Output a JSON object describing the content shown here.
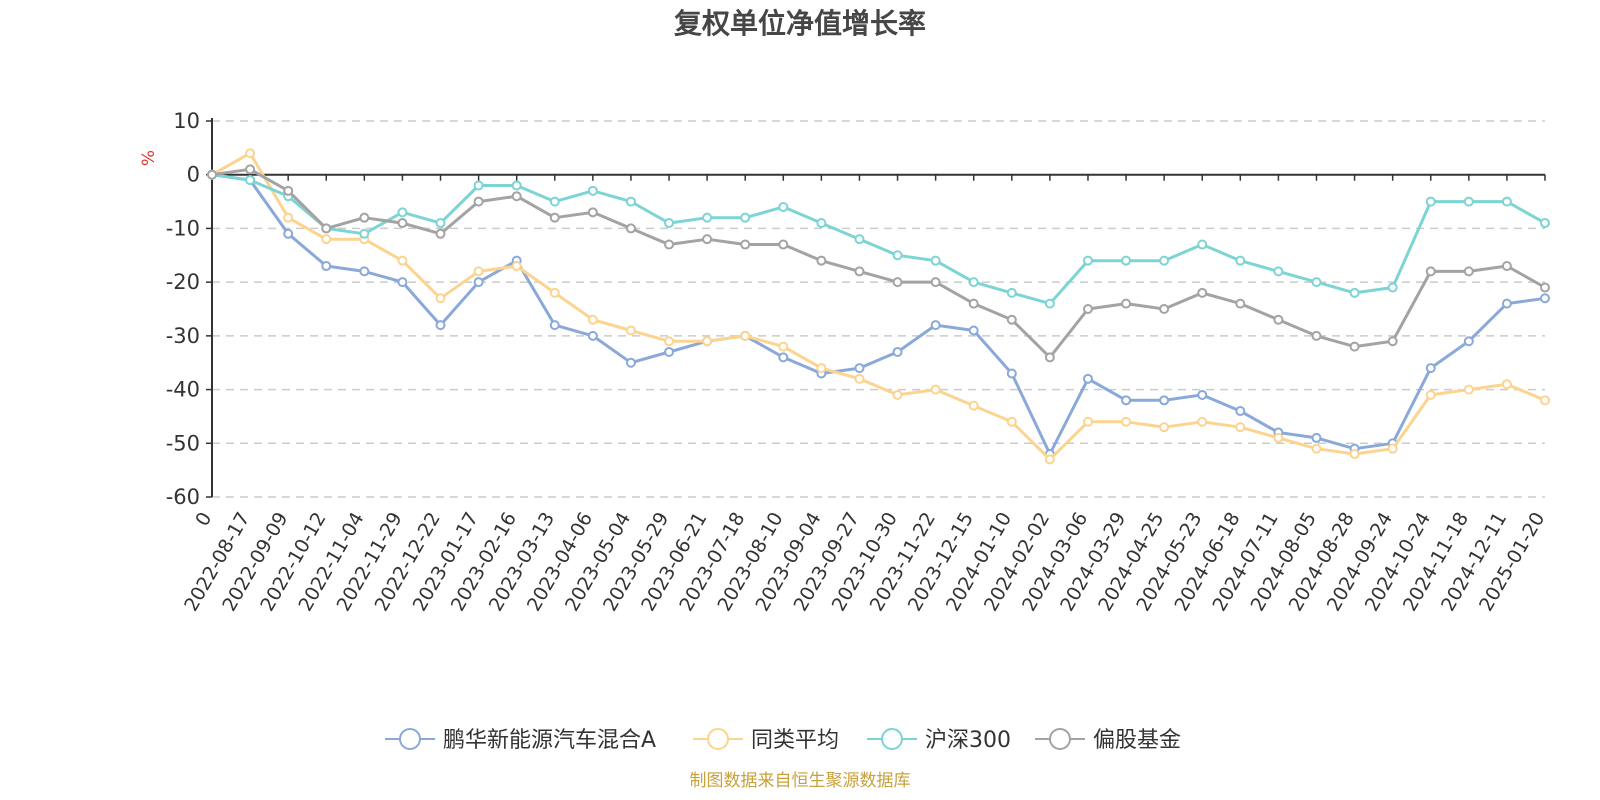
{
  "title": "复权单位净值增长率",
  "source": "制图数据来自恒生聚源数据库",
  "chart_data": {
    "type": "line",
    "title": "复权单位净值增长率",
    "ylabel": "%",
    "ylim": [
      -60,
      10
    ],
    "yticks": [
      10,
      0,
      -10,
      -20,
      -30,
      -40,
      -50,
      -60
    ],
    "grid": true,
    "legend_position": "bottom",
    "x": [
      "0",
      "2022-08-17",
      "2022-09-09",
      "2022-10-12",
      "2022-11-04",
      "2022-11-29",
      "2022-12-22",
      "2023-01-17",
      "2023-02-16",
      "2023-03-13",
      "2023-04-06",
      "2023-05-04",
      "2023-05-29",
      "2023-06-21",
      "2023-07-18",
      "2023-08-10",
      "2023-09-04",
      "2023-09-27",
      "2023-10-30",
      "2023-11-22",
      "2023-12-15",
      "2024-01-10",
      "2024-02-02",
      "2024-03-06",
      "2024-03-29",
      "2024-04-25",
      "2024-05-23",
      "2024-06-18",
      "2024-07-11",
      "2024-08-05",
      "2024-08-28",
      "2024-09-24",
      "2024-10-24",
      "2024-11-18",
      "2024-12-11",
      "2025-01-20"
    ],
    "series": [
      {
        "name": "鹏华新能源汽车混合A",
        "color": "#8aa9d9",
        "values": [
          0,
          -1,
          -11,
          -17,
          -18,
          -20,
          -28,
          -20,
          -16,
          -28,
          -30,
          -35,
          -33,
          -31,
          -30,
          -34,
          -37,
          -36,
          -33,
          -28,
          -29,
          -37,
          -52,
          -38,
          -42,
          -42,
          -41,
          -44,
          -48,
          -49,
          -51,
          -50,
          -36,
          -31,
          -24,
          -23
        ]
      },
      {
        "name": "同类平均",
        "color": "#fcd48f",
        "values": [
          0,
          4,
          -8,
          -12,
          -12,
          -16,
          -23,
          -18,
          -17,
          -22,
          -27,
          -29,
          -31,
          -31,
          -30,
          -32,
          -36,
          -38,
          -41,
          -40,
          -43,
          -46,
          -53,
          -46,
          -46,
          -47,
          -46,
          -47,
          -49,
          -51,
          -52,
          -51,
          -41,
          -40,
          -39,
          -42
        ]
      },
      {
        "name": "沪深300",
        "color": "#7dd4d4",
        "values": [
          0,
          -1,
          -4,
          -10,
          -11,
          -7,
          -9,
          -2,
          -2,
          -5,
          -3,
          -5,
          -9,
          -8,
          -8,
          -6,
          -9,
          -12,
          -15,
          -16,
          -20,
          -22,
          -24,
          -16,
          -16,
          -16,
          -13,
          -16,
          -18,
          -20,
          -22,
          -21,
          -5,
          -5,
          -5,
          -9
        ]
      },
      {
        "name": "偏股基金",
        "color": "#a3a3a3",
        "values": [
          0,
          1,
          -3,
          -10,
          -8,
          -9,
          -11,
          -5,
          -4,
          -8,
          -7,
          -10,
          -13,
          -12,
          -13,
          -13,
          -16,
          -18,
          -20,
          -20,
          -24,
          -27,
          -34,
          -25,
          -24,
          -25,
          -22,
          -24,
          -27,
          -30,
          -32,
          -31,
          -18,
          -18,
          -17,
          -21
        ]
      }
    ]
  }
}
